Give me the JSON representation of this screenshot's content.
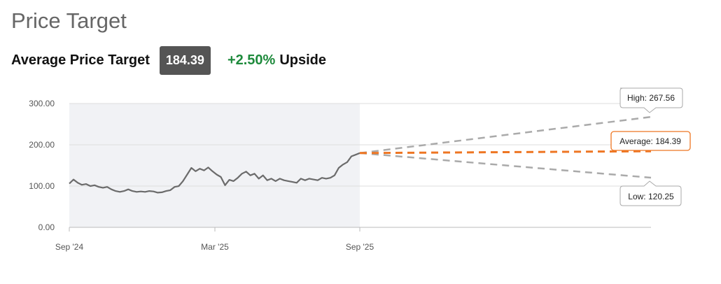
{
  "header": {
    "title": "Price Target",
    "average_label": "Average Price Target",
    "average_value": "184.39",
    "upside_pct": "+2.50%",
    "upside_word": "Upside"
  },
  "colors": {
    "price_line": "#6b6b6b",
    "history_bg": "#f1f2f5",
    "average": "#ee7623",
    "high_low": "#aaaaaa",
    "upside_green": "#1e8a3c",
    "badge": "#555555"
  },
  "chart_data": {
    "type": "line",
    "y_ticks": [
      "300.00",
      "200.00",
      "100.00",
      "0.00"
    ],
    "ylim": [
      0,
      300
    ],
    "x_ticks": [
      "Sep '24",
      "Mar '25",
      "Sep '25"
    ],
    "series": [
      {
        "values": [
          106,
          116,
          108,
          103,
          105,
          100,
          102,
          98,
          96,
          98,
          92,
          88,
          86,
          88,
          92,
          88,
          86,
          87,
          86,
          88,
          87,
          84,
          85,
          88,
          90,
          98,
          100,
          112,
          128,
          144,
          136,
          142,
          138,
          145,
          136,
          128,
          122,
          102,
          115,
          112,
          120,
          130,
          135,
          126,
          130,
          118,
          126,
          114,
          118,
          112,
          118,
          114,
          112,
          110,
          108,
          118,
          114,
          118,
          116,
          114,
          120,
          118,
          120,
          126,
          144,
          152,
          158,
          172,
          176,
          180
        ]
      }
    ],
    "current_price": "180",
    "targets": [
      {
        "label": "High: 267.56",
        "value": 267.56
      },
      {
        "label": "Average: 184.39",
        "value": 184.39
      },
      {
        "label": "Low: 120.25",
        "value": 120.25
      }
    ]
  }
}
